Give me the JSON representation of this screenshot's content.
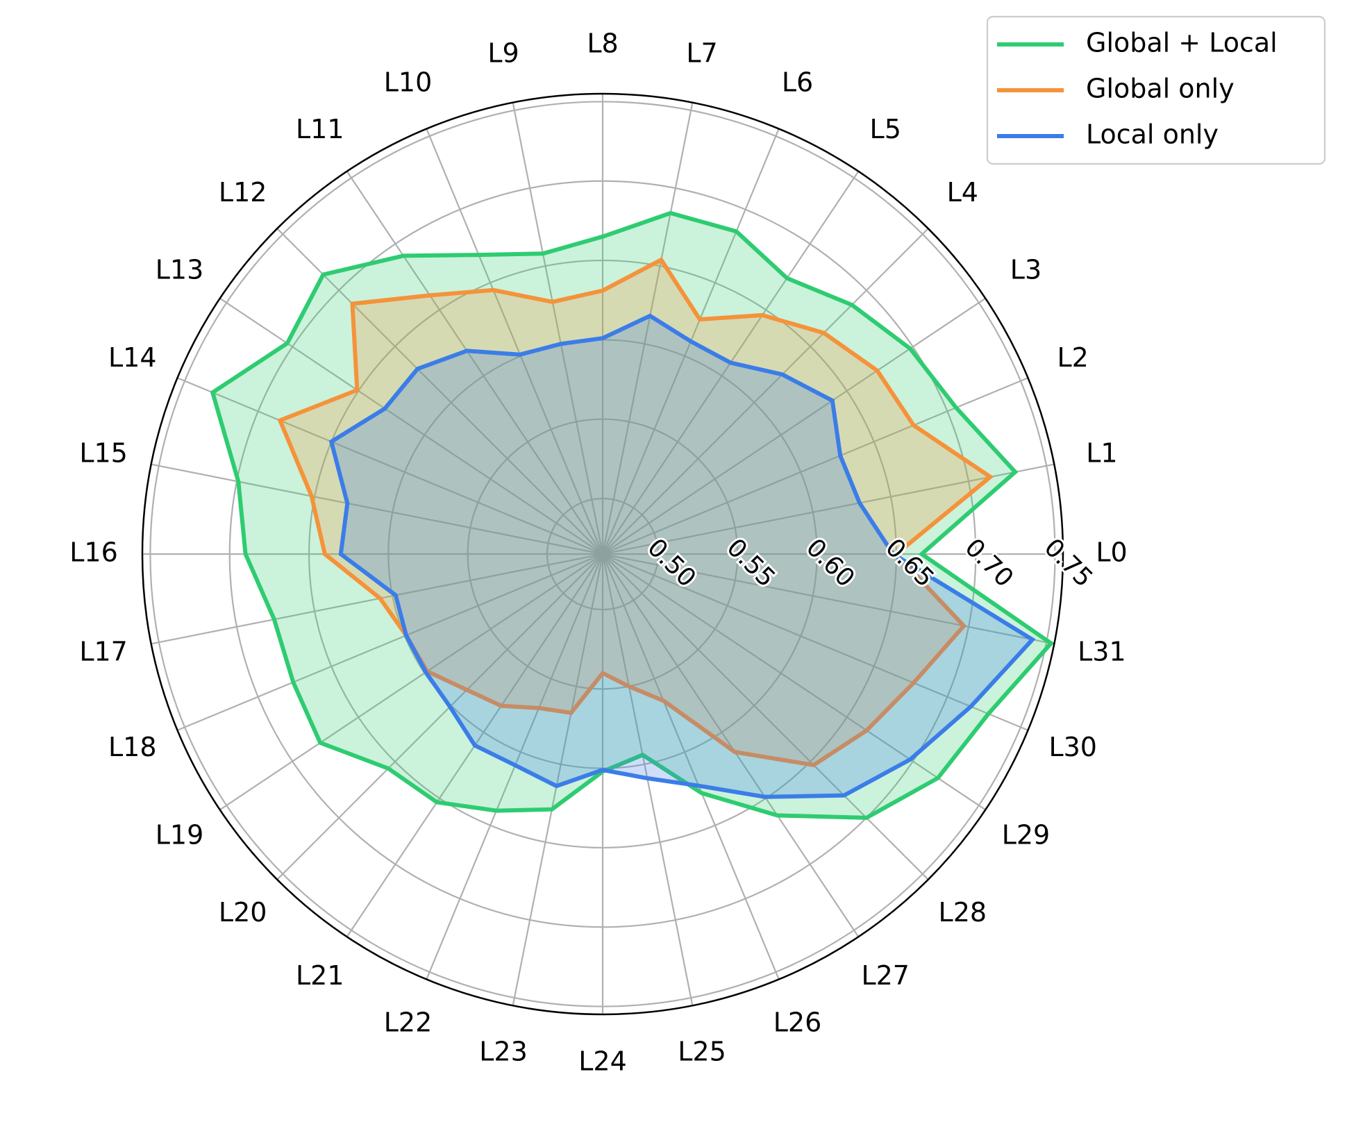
{
  "chart_data": {
    "type": "radar",
    "categories": [
      "L0",
      "L1",
      "L2",
      "L3",
      "L4",
      "L5",
      "L6",
      "L7",
      "L8",
      "L9",
      "L10",
      "L11",
      "L12",
      "L13",
      "L14",
      "L15",
      "L16",
      "L17",
      "L18",
      "L19",
      "L20",
      "L21",
      "L22",
      "L23",
      "L24",
      "L25",
      "L26",
      "L27",
      "L28",
      "L29",
      "L30",
      "L31"
    ],
    "radial_ticks": [
      "0.50",
      "0.55",
      "0.60",
      "0.65",
      "0.70",
      "0.75"
    ],
    "rlim": [
      0.465,
      0.755
    ],
    "grid": true,
    "legend_position": "top-right",
    "series": [
      {
        "name": "Global + Local",
        "color": "#2ecc71",
        "values": [
          0.666,
          0.73,
          0.706,
          0.698,
          0.687,
          0.674,
          0.685,
          0.684,
          0.665,
          0.658,
          0.669,
          0.691,
          0.714,
          0.704,
          0.731,
          0.699,
          0.69,
          0.676,
          0.676,
          0.679,
          0.656,
          0.653,
          0.64,
          0.629,
          0.602,
          0.594,
          0.628,
          0.663,
          0.7,
          0.719,
          0.728,
          0.753
        ]
      },
      {
        "name": "Global only",
        "color": "#f5923a",
        "values": [
          0.65,
          0.714,
          0.677,
          0.673,
          0.662,
          0.646,
          0.625,
          0.654,
          0.631,
          0.627,
          0.645,
          0.661,
          0.688,
          0.651,
          0.685,
          0.652,
          0.64,
          0.608,
          0.599,
          0.598,
          0.586,
          0.58,
          0.57,
          0.567,
          0.54,
          0.55,
          0.565,
          0.615,
          0.653,
          0.665,
          0.677,
          0.697
        ]
      },
      {
        "name": "Local only",
        "color": "#3b7de8",
        "values": [
          0.648,
          0.63,
          0.627,
          0.639,
          0.625,
          0.61,
          0.61,
          0.618,
          0.601,
          0.6,
          0.601,
          0.619,
          0.63,
          0.63,
          0.65,
          0.629,
          0.63,
          0.598,
          0.599,
          0.599,
          0.601,
          0.61,
          0.609,
          0.614,
          0.601,
          0.609,
          0.623,
          0.649,
          0.68,
          0.698,
          0.716,
          0.741
        ]
      }
    ]
  }
}
